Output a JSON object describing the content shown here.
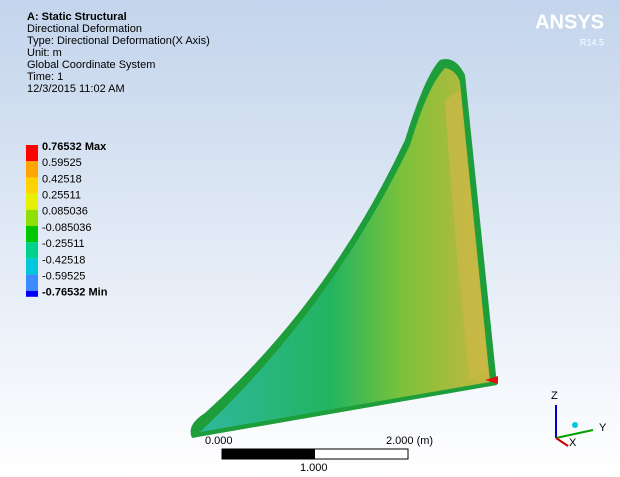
{
  "header": {
    "title": "A: Static Structural",
    "lines": [
      "Directional Deformation",
      "Type: Directional Deformation(X Axis)",
      "Unit: m",
      "Global Coordinate System",
      "Time: 1",
      "12/3/2015 11:02 AM"
    ]
  },
  "legend": {
    "labels": [
      "0.76532 Max",
      "0.59525",
      "0.42518",
      "0.25511",
      "0.085036",
      "-0.085036",
      "-0.25511",
      "-0.42518",
      "-0.59525",
      "-0.76532 Min"
    ],
    "colors": [
      "#ff0000",
      "#ffa500",
      "#ffd200",
      "#e6f000",
      "#8fe000",
      "#00c800",
      "#00d28c",
      "#00c8dc",
      "#3c8cff",
      "#0000ff"
    ]
  },
  "logo": {
    "name": "ANSYS",
    "version": "R14.5"
  },
  "scale_bar": {
    "start": "0.000",
    "end": "2.000 (m)",
    "middle": "1.000"
  },
  "triad": {
    "z": "Z",
    "y": "Y",
    "x": "X"
  }
}
